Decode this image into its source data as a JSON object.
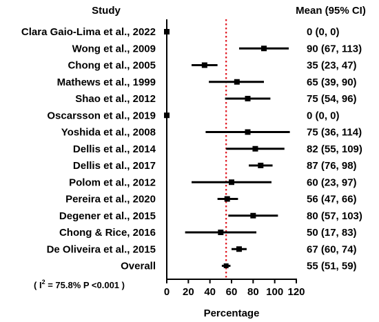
{
  "chart_data": {
    "type": "forest",
    "title": "",
    "columns": {
      "study": "Study",
      "mean": "Mean (95% CI)"
    },
    "xlabel": "Percentage",
    "xlim": [
      0,
      120
    ],
    "xticks": [
      "0",
      "20",
      "40",
      "60",
      "80",
      "100",
      "120"
    ],
    "reference_line": 55,
    "studies": [
      {
        "label": "Clara Gaio-Lima et al., 2022",
        "mean": 0,
        "lower": 0,
        "upper": 0,
        "text": "0 (0, 0)"
      },
      {
        "label": "Wong et al., 2009",
        "mean": 90,
        "lower": 67,
        "upper": 113,
        "text": "90 (67, 113)"
      },
      {
        "label": "Chong et al., 2005",
        "mean": 35,
        "lower": 23,
        "upper": 47,
        "text": "35 (23, 47)"
      },
      {
        "label": "Mathews et al., 1999",
        "mean": 65,
        "lower": 39,
        "upper": 90,
        "text": "65 (39, 90)"
      },
      {
        "label": "Shao et al., 2012",
        "mean": 75,
        "lower": 54,
        "upper": 96,
        "text": "75 (54, 96)"
      },
      {
        "label": "Oscarsson et al., 2019",
        "mean": 0,
        "lower": 0,
        "upper": 0,
        "text": "0 (0, 0)"
      },
      {
        "label": "Yoshida et al., 2008",
        "mean": 75,
        "lower": 36,
        "upper": 114,
        "text": "75 (36, 114)"
      },
      {
        "label": "Dellis et al., 2014",
        "mean": 82,
        "lower": 55,
        "upper": 109,
        "text": "82 (55, 109)"
      },
      {
        "label": "Dellis et al., 2017",
        "mean": 87,
        "lower": 76,
        "upper": 98,
        "text": "87 (76, 98)"
      },
      {
        "label": "Polom et al., 2012",
        "mean": 60,
        "lower": 23,
        "upper": 97,
        "text": "60 (23, 97)"
      },
      {
        "label": "Pereira et al., 2020",
        "mean": 56,
        "lower": 47,
        "upper": 66,
        "text": "56 (47, 66)"
      },
      {
        "label": "Degener et al., 2015",
        "mean": 80,
        "lower": 57,
        "upper": 103,
        "text": "80 (57, 103)"
      },
      {
        "label": "Chong & Rice, 2016",
        "mean": 50,
        "lower": 17,
        "upper": 83,
        "text": "50 (17, 83)"
      },
      {
        "label": "De Oliveira et al., 2015",
        "mean": 67,
        "lower": 60,
        "upper": 74,
        "text": "67 (60, 74)"
      }
    ],
    "overall": {
      "label": "Overall",
      "mean": 55,
      "lower": 51,
      "upper": 59,
      "text": "55 (51, 59)"
    },
    "heterogeneity": {
      "prefix": "( I",
      "sup": "2",
      "rest": " = 75.8%  P <0.001 )"
    },
    "colors": {
      "reference_line": "#e0141e",
      "marks": "#000000"
    }
  }
}
